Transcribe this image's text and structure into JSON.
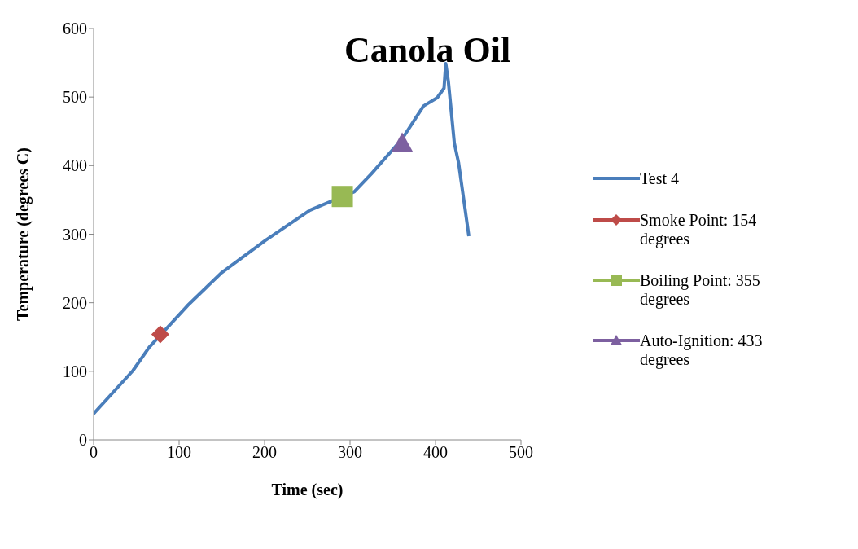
{
  "chart_data": {
    "type": "line",
    "title": "Canola Oil",
    "xlabel": "Time (sec)",
    "ylabel": "Temperature (degrees C)",
    "xlim": [
      0,
      500
    ],
    "xticks": [
      0,
      100,
      200,
      300,
      400,
      500
    ],
    "ylim": [
      0,
      600
    ],
    "yticks": [
      0,
      100,
      200,
      300,
      400,
      500,
      600
    ],
    "grid": false,
    "legend": "right",
    "series": [
      {
        "name": "Test 4",
        "color": "#4a7ebb",
        "marker": "none",
        "x": [
          0,
          46,
          65,
          110,
          149,
          201,
          253,
          305,
          325,
          361,
          386,
          402,
          410,
          412,
          415,
          422,
          427,
          435,
          439
        ],
        "values": [
          38,
          101,
          135,
          196,
          243,
          291,
          335,
          362,
          388,
          439,
          487,
          499,
          513,
          549,
          523,
          433,
          404,
          333,
          297
        ]
      },
      {
        "name": "Smoke Point: 154 degrees",
        "type": "scatter",
        "color": "#be4b48",
        "marker": "diamond",
        "x": [
          78
        ],
        "values": [
          154
        ]
      },
      {
        "name": "Boiling Point: 355 degrees",
        "type": "scatter",
        "color": "#98b954",
        "marker": "square",
        "x": [
          291
        ],
        "values": [
          355
        ]
      },
      {
        "name": "Auto-Ignition: 433 degrees",
        "type": "scatter",
        "color": "#7d60a0",
        "marker": "triangle",
        "x": [
          361
        ],
        "values": [
          433
        ]
      }
    ]
  }
}
